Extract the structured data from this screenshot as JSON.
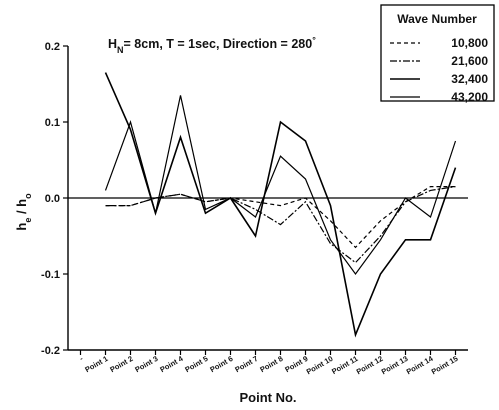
{
  "chart_data": {
    "type": "line",
    "annotation": {
      "prefix": "H",
      "prefix_sub": "N",
      "rest": "= 8cm, T = 1sec, Direction = 280",
      "suffix_sup": "°"
    },
    "ylabel": {
      "base1": "h",
      "sub1": "e",
      "sep": " / ",
      "base2": "h",
      "sub2": "o"
    },
    "xlabel": "Point No.",
    "ylim": [
      -0.2,
      0.2
    ],
    "yticks": [
      -0.2,
      -0.1,
      0.0,
      0.1,
      0.2
    ],
    "ytick_labels": [
      "-0.2",
      "-0.1",
      "0.0",
      "0.1",
      "0.2"
    ],
    "categories": [
      "-",
      "Point 1",
      "Point 2",
      "Point 3",
      "Point 4",
      "Point 5",
      "Point 6",
      "Point 7",
      "Point 8",
      "Point 9",
      "Point 10",
      "Point 11",
      "Point 12",
      "Point 13",
      "Point 14",
      "Point 15"
    ],
    "zero_line": true,
    "legend": {
      "title": "Wave Number",
      "position": "top-right"
    },
    "series": [
      {
        "name": "10,800",
        "style": "dashed",
        "values": [
          null,
          -0.01,
          -0.01,
          0.0,
          0.005,
          -0.005,
          0.0,
          -0.005,
          -0.01,
          0.0,
          -0.03,
          -0.065,
          -0.03,
          -0.005,
          0.015,
          0.015
        ]
      },
      {
        "name": "21,600",
        "style": "dashdot",
        "values": [
          null,
          -0.01,
          -0.01,
          0.0,
          0.005,
          -0.005,
          0.0,
          -0.015,
          -0.035,
          -0.005,
          -0.06,
          -0.085,
          -0.05,
          -0.005,
          0.01,
          0.015
        ]
      },
      {
        "name": "32,400",
        "style": "solid-thick",
        "values": [
          null,
          0.165,
          0.09,
          -0.02,
          0.08,
          -0.02,
          0.0,
          -0.05,
          0.1,
          0.075,
          -0.01,
          -0.18,
          -0.1,
          -0.055,
          -0.055,
          0.04
        ]
      },
      {
        "name": "43,200",
        "style": "solid-thin",
        "values": [
          null,
          0.01,
          0.1,
          -0.02,
          0.135,
          -0.015,
          0.0,
          -0.025,
          0.055,
          0.025,
          -0.055,
          -0.1,
          -0.055,
          0.0,
          -0.025,
          0.075
        ]
      }
    ]
  }
}
